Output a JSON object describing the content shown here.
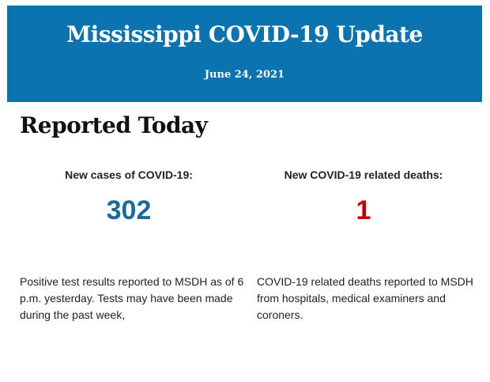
{
  "header": {
    "title": "Mississippi COVID-19 Update",
    "date": "June 24, 2021",
    "bg_color": "#0b74b0"
  },
  "section_title": "Reported Today",
  "cases": {
    "label": "New cases of COVID-19:",
    "value": "302",
    "color": "#1a6a9c",
    "description": "Positive test results reported to MSDH as of 6 p.m. yesterday. Tests may have been made during the past week,"
  },
  "deaths": {
    "label": "New COVID-19 related deaths:",
    "value": "1",
    "color": "#c00000",
    "description": "COVID-19 related deaths reported to MSDH from hospitals, medical examiners and coroners."
  }
}
